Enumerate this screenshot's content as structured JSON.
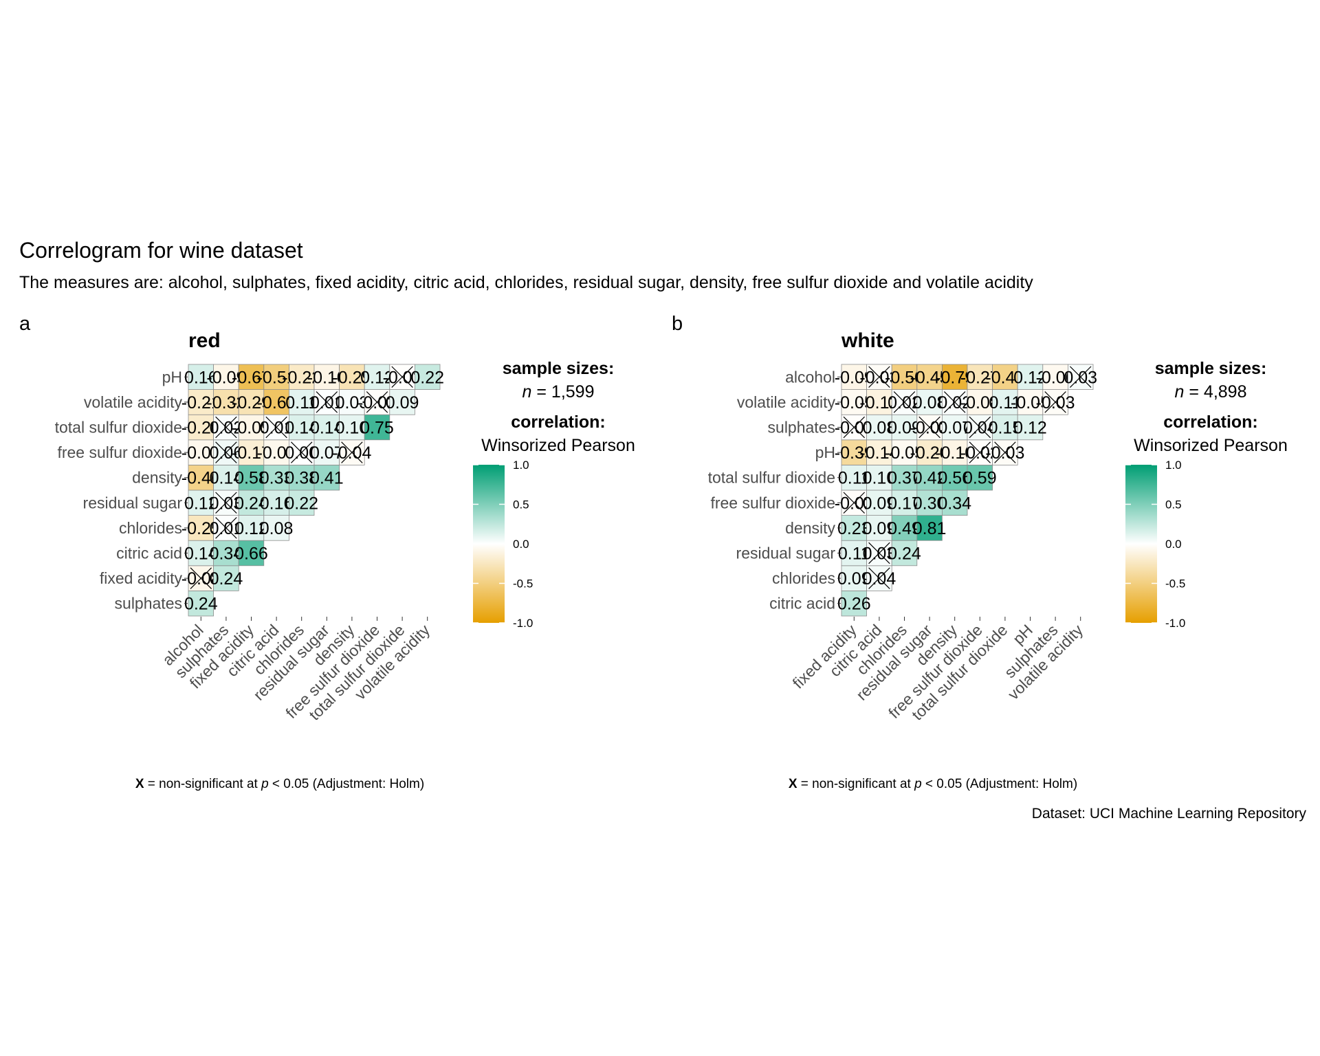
{
  "title": "Correlogram for wine dataset",
  "subtitle": "The measures are: alcohol, sulphates, fixed acidity, citric acid, chlorides, residual sugar, density, free sulfur dioxide and volatile acidity",
  "source": "Dataset: UCI Machine Learning Repository",
  "colors": {
    "low": "#E69F00",
    "mid": "#FFFFFF",
    "high": "#009E73"
  },
  "chart_data": [
    {
      "type": "heatmap",
      "tag": "a",
      "panel_title": "red",
      "x_labels": [
        "alcohol",
        "sulphates",
        "fixed acidity",
        "citric acid",
        "chlorides",
        "residual sugar",
        "density",
        "free sulfur dioxide",
        "total sulfur dioxide",
        "volatile acidity"
      ],
      "y_labels": [
        "sulphates",
        "fixed acidity",
        "citric acid",
        "chlorides",
        "residual sugar",
        "density",
        "free sulfur dioxide",
        "total sulfur dioxide",
        "volatile acidity",
        "pH"
      ],
      "matrix": [
        [
          0.24
        ],
        [
          -0.08,
          0.24
        ],
        [
          0.14,
          0.34,
          0.66
        ],
        [
          -0.25,
          0.01,
          0.12,
          0.08
        ],
        [
          0.12,
          0.03,
          0.24,
          0.16,
          0.22
        ],
        [
          -0.46,
          0.14,
          0.58,
          0.33,
          0.38,
          0.41
        ],
        [
          -0.07,
          0.06,
          -0.17,
          -0.07,
          0.0,
          0.07,
          -0.04
        ],
        [
          -0.2,
          0.02,
          -0.09,
          0.01,
          0.14,
          0.14,
          0.1,
          0.75
        ],
        [
          -0.21,
          -0.32,
          -0.29,
          -0.61,
          0.11,
          0.01,
          0.03,
          -0.02,
          0.09
        ],
        [
          0.16,
          -0.09,
          -0.67,
          -0.51,
          -0.22,
          -0.1,
          -0.29,
          0.12,
          -0.01,
          0.22
        ]
      ],
      "value_labels": [
        [
          "0.24"
        ],
        [
          "-0.08",
          "0.24"
        ],
        [
          "0.14",
          "0.34",
          "0.66"
        ],
        [
          "-0.25",
          "0.01",
          "0.12",
          "0.08"
        ],
        [
          "0.12",
          "0.03",
          "0.24",
          "0.16",
          "0.22"
        ],
        [
          "-0.46",
          "0.14",
          "0.58",
          "0.33",
          "0.38",
          "0.41"
        ],
        [
          "-0.07",
          "0.06",
          "-0.17",
          "-0.07",
          "0.00",
          "0.07",
          "-0.04"
        ],
        [
          "-0.20",
          "0.02",
          "-0.09",
          "0.01",
          "0.14",
          "0.14",
          "0.10",
          "0.75"
        ],
        [
          "-0.21",
          "-0.32",
          "-0.29",
          "-0.61",
          "0.11",
          "0.01",
          "0.03",
          "-0.02",
          "0.09"
        ],
        [
          "0.16",
          "-0.09",
          "-0.67",
          "-0.51",
          "-0.22",
          "-0.10",
          "-0.29",
          "0.12",
          "-0.01",
          "0.22"
        ]
      ],
      "nonsignificant": [
        [
          false
        ],
        [
          true,
          false
        ],
        [
          false,
          false,
          false
        ],
        [
          false,
          true,
          false,
          false
        ],
        [
          false,
          true,
          false,
          false,
          false
        ],
        [
          false,
          false,
          false,
          false,
          false,
          false
        ],
        [
          false,
          true,
          false,
          false,
          true,
          false,
          true
        ],
        [
          false,
          true,
          false,
          true,
          false,
          false,
          false,
          false
        ],
        [
          false,
          false,
          false,
          false,
          false,
          true,
          false,
          true,
          false
        ],
        [
          false,
          false,
          false,
          false,
          false,
          false,
          false,
          false,
          true,
          false
        ]
      ],
      "legend": {
        "sample_heading": "sample sizes:",
        "n_prefix": "n",
        "n_value": "= 1,599",
        "corr_heading": "correlation:",
        "corr_method": "Winsorized Pearson",
        "ticks": [
          "1.0",
          "0.5",
          "0.0",
          "-0.5",
          "-1.0"
        ],
        "tick_values": [
          1.0,
          0.5,
          0.0,
          -0.5,
          -1.0
        ]
      },
      "caption": {
        "symbol": "X",
        "text_1": "= non-significant at",
        "p": "p",
        "text_2": "< 0.05 (Adjustment: Holm)"
      }
    },
    {
      "type": "heatmap",
      "tag": "b",
      "panel_title": "white",
      "x_labels": [
        "fixed acidity",
        "citric acid",
        "chlorides",
        "residual sugar",
        "density",
        "free sulfur dioxide",
        "total sulfur dioxide",
        "pH",
        "sulphates",
        "volatile acidity"
      ],
      "y_labels": [
        "citric acid",
        "chlorides",
        "residual sugar",
        "density",
        "free sulfur dioxide",
        "total sulfur dioxide",
        "pH",
        "sulphates",
        "volatile acidity",
        "alcohol"
      ],
      "matrix": [
        [
          0.26
        ],
        [
          0.09,
          0.04
        ],
        [
          0.11,
          0.03,
          0.24
        ],
        [
          0.23,
          0.09,
          0.49,
          0.81
        ],
        [
          -0.02,
          0.09,
          0.17,
          0.3,
          0.34
        ],
        [
          0.11,
          0.1,
          0.37,
          0.42,
          0.56,
          0.59
        ],
        [
          -0.39,
          -0.14,
          -0.05,
          -0.2,
          -0.1,
          -0.02,
          -0.03
        ],
        [
          -0.01,
          0.08,
          0.09,
          -0.03,
          0.07,
          0.04,
          0.15,
          0.12
        ],
        [
          -0.05,
          -0.12,
          0.02,
          0.08,
          0.02,
          -0.08,
          0.11,
          -0.05,
          -0.03
        ],
        [
          -0.09,
          -0.03,
          -0.5,
          -0.45,
          -0.79,
          -0.27,
          -0.47,
          0.12,
          -0.06,
          0.03
        ]
      ],
      "value_labels": [
        [
          "0.26"
        ],
        [
          "0.09",
          "0.04"
        ],
        [
          "0.11",
          "0.03",
          "0.24"
        ],
        [
          "0.23",
          "0.09",
          "0.49",
          "0.81"
        ],
        [
          "-0.02",
          "0.09",
          "0.17",
          "0.30",
          "0.34"
        ],
        [
          "0.11",
          "0.10",
          "0.37",
          "0.42",
          "0.56",
          "0.59"
        ],
        [
          "-0.39",
          "-0.14",
          "-0.05",
          "-0.20",
          "-0.10",
          "-0.02",
          "-0.03"
        ],
        [
          "-0.01",
          "0.08",
          "0.09",
          "-0.03",
          "0.07",
          "0.04",
          "0.15",
          "0.12"
        ],
        [
          "-0.05",
          "-0.12",
          "0.02",
          "0.08",
          "0.02",
          "-0.08",
          "0.11",
          "-0.05",
          "-0.03"
        ],
        [
          "-0.09",
          "-0.03",
          "-0.50",
          "-0.45",
          "-0.79",
          "-0.27",
          "-0.47",
          "0.12",
          "-0.06",
          "0.03"
        ]
      ],
      "nonsignificant": [
        [
          false
        ],
        [
          false,
          true
        ],
        [
          false,
          true,
          false
        ],
        [
          false,
          false,
          false,
          false
        ],
        [
          true,
          false,
          false,
          false,
          false
        ],
        [
          false,
          false,
          false,
          false,
          false,
          false
        ],
        [
          false,
          false,
          false,
          false,
          false,
          true,
          true
        ],
        [
          true,
          false,
          false,
          true,
          false,
          true,
          false,
          false
        ],
        [
          false,
          false,
          true,
          false,
          true,
          false,
          false,
          false,
          true
        ],
        [
          false,
          true,
          false,
          false,
          false,
          false,
          false,
          false,
          false,
          true
        ]
      ],
      "legend": {
        "sample_heading": "sample sizes:",
        "n_prefix": "n",
        "n_value": "= 4,898",
        "corr_heading": "correlation:",
        "corr_method": "Winsorized Pearson",
        "ticks": [
          "1.0",
          "0.5",
          "0.0",
          "-0.5",
          "-1.0"
        ],
        "tick_values": [
          1.0,
          0.5,
          0.0,
          -0.5,
          -1.0
        ]
      },
      "caption": {
        "symbol": "X",
        "text_1": "= non-significant at",
        "p": "p",
        "text_2": "< 0.05 (Adjustment: Holm)"
      }
    }
  ]
}
